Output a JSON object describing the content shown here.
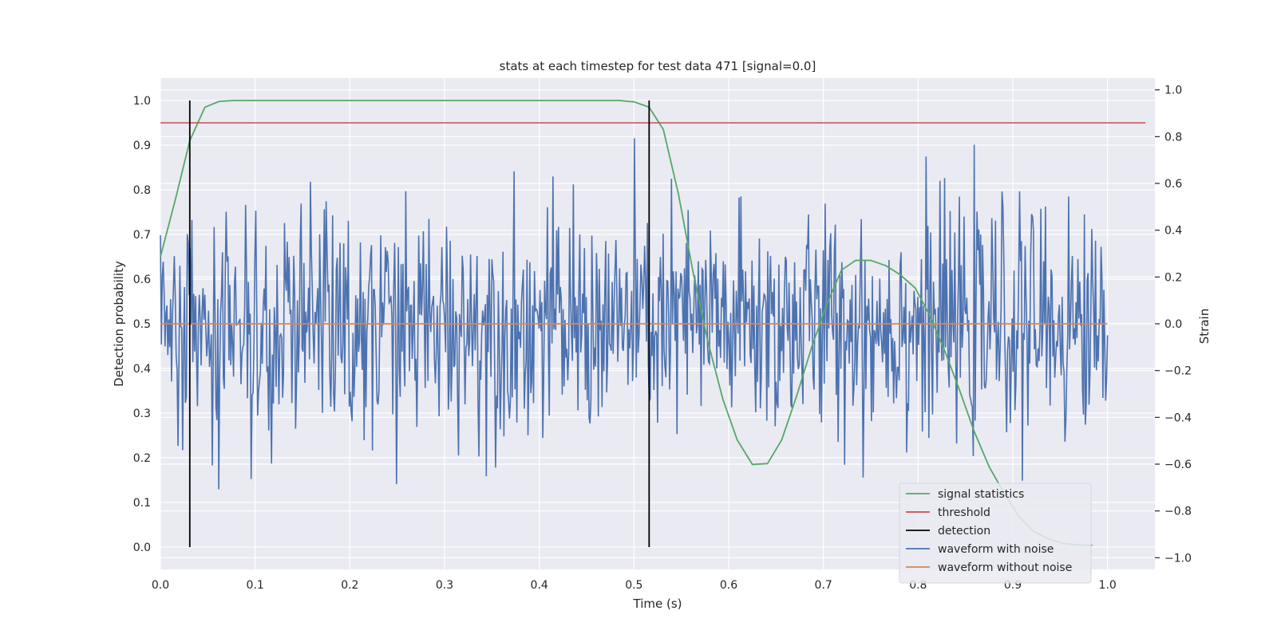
{
  "chart_data": {
    "type": "line",
    "title": "stats at each timestep for test data 471 [signal=0.0]",
    "xlabel": "Time (s)",
    "ylabel_left": "Detection probability",
    "ylabel_right": "Strain",
    "xlim": [
      0.0,
      1.05
    ],
    "ylim_left": [
      -0.05,
      1.05
    ],
    "ylim_right": [
      -1.05,
      1.05
    ],
    "x_ticks": [
      0.0,
      0.1,
      0.2,
      0.3,
      0.4,
      0.5,
      0.6,
      0.7,
      0.8,
      0.9,
      1.0
    ],
    "y_left_ticks": [
      0.0,
      0.1,
      0.2,
      0.3,
      0.4,
      0.5,
      0.6,
      0.7,
      0.8,
      0.9,
      1.0
    ],
    "y_right_ticks": [
      -1.0,
      -0.8,
      -0.6,
      -0.4,
      -0.2,
      0.0,
      0.2,
      0.4,
      0.6,
      0.8,
      1.0
    ],
    "grid": true,
    "legend_position": "lower-right",
    "colors": {
      "background": "#eaeaf2",
      "grid": "#ffffff",
      "signal_statistics": "#55a868",
      "threshold": "#c44e52",
      "detection": "#000000",
      "waveform_with_noise": "#4c72b0",
      "waveform_without_noise": "#dd8452"
    },
    "legend": [
      {
        "label": "signal statistics",
        "color": "#55a868"
      },
      {
        "label": "threshold",
        "color": "#c44e52"
      },
      {
        "label": "detection",
        "color": "#000000"
      },
      {
        "label": "waveform with noise",
        "color": "#4c72b0"
      },
      {
        "label": "waveform without noise",
        "color": "#dd8452"
      }
    ],
    "series": [
      {
        "name": "signal statistics",
        "axis": "left",
        "x": [
          0.0,
          0.016,
          0.031,
          0.047,
          0.062,
          0.078,
          0.094,
          0.109,
          0.125,
          0.141,
          0.156,
          0.172,
          0.188,
          0.203,
          0.219,
          0.234,
          0.25,
          0.266,
          0.281,
          0.297,
          0.312,
          0.328,
          0.344,
          0.359,
          0.375,
          0.391,
          0.406,
          0.422,
          0.438,
          0.453,
          0.469,
          0.484,
          0.5,
          0.516,
          0.531,
          0.547,
          0.562,
          0.578,
          0.594,
          0.609,
          0.625,
          0.641,
          0.656,
          0.672,
          0.688,
          0.703,
          0.719,
          0.734,
          0.75,
          0.766,
          0.781,
          0.797,
          0.812,
          0.828,
          0.844,
          0.859,
          0.875,
          0.891,
          0.906,
          0.922,
          0.938,
          0.953,
          0.969,
          0.984
        ],
        "values": [
          0.65,
          0.78,
          0.91,
          0.985,
          0.998,
          1.0,
          1.0,
          1.0,
          1.0,
          1.0,
          1.0,
          1.0,
          1.0,
          1.0,
          1.0,
          1.0,
          1.0,
          1.0,
          1.0,
          1.0,
          1.0,
          1.0,
          1.0,
          1.0,
          1.0,
          1.0,
          1.0,
          1.0,
          1.0,
          1.0,
          1.0,
          1.0,
          0.997,
          0.985,
          0.935,
          0.79,
          0.62,
          0.46,
          0.33,
          0.24,
          0.185,
          0.187,
          0.24,
          0.34,
          0.45,
          0.54,
          0.62,
          0.642,
          0.642,
          0.63,
          0.61,
          0.58,
          0.52,
          0.44,
          0.35,
          0.26,
          0.18,
          0.12,
          0.07,
          0.035,
          0.018,
          0.008,
          0.005,
          0.004
        ]
      },
      {
        "name": "threshold",
        "axis": "left",
        "x": [
          0.0,
          1.04
        ],
        "values": [
          0.95,
          0.95
        ]
      },
      {
        "name": "detection",
        "axis": "left",
        "x": [
          0.031,
          0.516
        ],
        "ymin": 0.0,
        "ymax": 1.0
      },
      {
        "name": "waveform with noise",
        "axis": "right",
        "x_start": 0.0,
        "x_end": 1.0,
        "n_points": 1024,
        "values": []
      },
      {
        "name": "waveform without noise",
        "axis": "right",
        "x": [
          0.0,
          1.0
        ],
        "values": [
          0.0,
          0.0
        ]
      }
    ]
  }
}
